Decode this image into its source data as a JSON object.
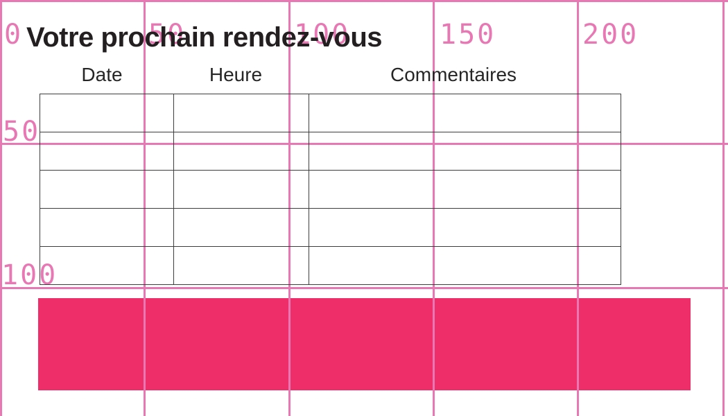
{
  "page": {
    "title": "Votre prochain rendez-vous",
    "background_color": "#FFFFFF",
    "text_color": "#231F20"
  },
  "appointments_table": {
    "headers": [
      "Date",
      "Heure",
      "Commentaires"
    ],
    "rows": [
      [
        "",
        "",
        ""
      ],
      [
        "",
        "",
        ""
      ],
      [
        "",
        "",
        ""
      ],
      [
        "",
        "",
        ""
      ],
      [
        "",
        "",
        ""
      ]
    ],
    "border_color": "#3C3C3C"
  },
  "highlight_bar": {
    "color": "#ED2E69"
  },
  "ruler_grid": {
    "color": "#E778B4",
    "top_tick_labels": [
      "0",
      "50",
      "100",
      "150",
      "200"
    ],
    "left_tick_labels": [
      "50",
      "100"
    ]
  }
}
